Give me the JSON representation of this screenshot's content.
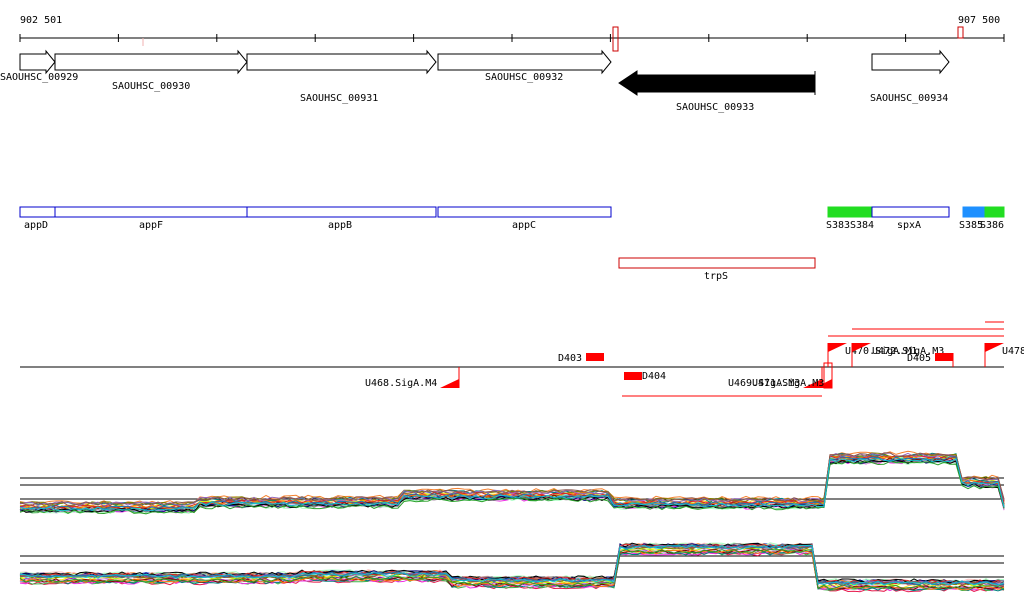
{
  "ruler": {
    "start_label": "902 501",
    "end_label": "907 500"
  },
  "genes": [
    {
      "label": "SAOUHSC_00929",
      "strand": "+"
    },
    {
      "label": "SAOUHSC_00930",
      "strand": "+"
    },
    {
      "label": "SAOUHSC_00931",
      "strand": "+"
    },
    {
      "label": "SAOUHSC_00932",
      "strand": "+"
    },
    {
      "label": "SAOUHSC_00933",
      "strand": "-",
      "selected": true
    },
    {
      "label": "SAOUHSC_00934",
      "strand": "+"
    }
  ],
  "operons": [
    {
      "label": "appD",
      "color": "#0000cc",
      "fill": "none"
    },
    {
      "label": "appF",
      "color": "#0000cc",
      "fill": "none"
    },
    {
      "label": "appB",
      "color": "#0000cc",
      "fill": "none"
    },
    {
      "label": "appC",
      "color": "#0000cc",
      "fill": "none"
    },
    {
      "label": "S383",
      "color": "#22dd22",
      "fill": "#22dd22"
    },
    {
      "label": "S384",
      "color": "#22dd22",
      "fill": "#22dd22"
    },
    {
      "label": "spxA",
      "color": "#0000cc",
      "fill": "none"
    },
    {
      "label": "S385",
      "color": "#1e90ff",
      "fill": "#1e90ff"
    },
    {
      "label": "S386",
      "color": "#22dd22",
      "fill": "#22dd22"
    }
  ],
  "trps": {
    "label": "trpS",
    "color": "#cc0000"
  },
  "features": [
    {
      "label": "D403"
    },
    {
      "label": "D404"
    },
    {
      "label": "U468.SigA.M4"
    },
    {
      "label": "U469.SigA.M3"
    },
    {
      "label": "U470.SigA.M1"
    },
    {
      "label": "U471.SigA.M3"
    },
    {
      "label": "U472.SigA.M3"
    },
    {
      "label": "D405"
    },
    {
      "label": "U478"
    }
  ],
  "colors": {
    "gene_stroke": "#000000",
    "gene_selected": "#000000",
    "feature_red": "#ff0000",
    "ruler_tick_highlight": "#cc0000"
  }
}
